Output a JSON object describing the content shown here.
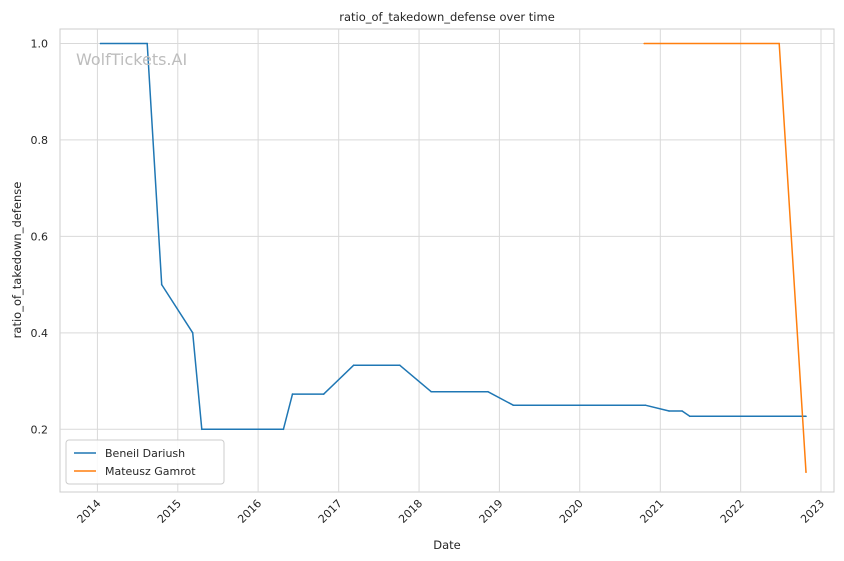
{
  "chart_data": {
    "type": "line",
    "title": "ratio_of_takedown_defense over time",
    "xlabel": "Date",
    "ylabel": "ratio_of_takedown_defense",
    "watermark": "WolfTickets.AI",
    "x_ticks": [
      "2014",
      "2015",
      "2016",
      "2017",
      "2018",
      "2019",
      "2020",
      "2021",
      "2022",
      "2023"
    ],
    "y_ticks": [
      "0.2",
      "0.4",
      "0.6",
      "0.8",
      "1.0"
    ],
    "xlim": [
      "2013-07-15",
      "2023-03-01"
    ],
    "ylim": [
      0.07,
      1.03
    ],
    "grid": true,
    "legend_position": "lower-left",
    "series": [
      {
        "name": "Beneil Dariush",
        "color": "#1f77b4",
        "points": [
          {
            "x": "2014-01-15",
            "y": 1.0
          },
          {
            "x": "2014-08-15",
            "y": 1.0
          },
          {
            "x": "2014-10-20",
            "y": 0.5
          },
          {
            "x": "2015-03-10",
            "y": 0.4
          },
          {
            "x": "2015-04-20",
            "y": 0.2
          },
          {
            "x": "2016-04-25",
            "y": 0.2
          },
          {
            "x": "2016-06-05",
            "y": 0.273
          },
          {
            "x": "2016-10-25",
            "y": 0.273
          },
          {
            "x": "2017-03-10",
            "y": 0.333
          },
          {
            "x": "2017-10-05",
            "y": 0.333
          },
          {
            "x": "2018-02-25",
            "y": 0.278
          },
          {
            "x": "2018-11-10",
            "y": 0.278
          },
          {
            "x": "2019-03-05",
            "y": 0.25
          },
          {
            "x": "2020-10-25",
            "y": 0.25
          },
          {
            "x": "2021-02-10",
            "y": 0.238
          },
          {
            "x": "2021-04-10",
            "y": 0.238
          },
          {
            "x": "2021-05-15",
            "y": 0.227
          },
          {
            "x": "2022-10-25",
            "y": 0.227
          }
        ]
      },
      {
        "name": "Mateusz Gamrot",
        "color": "#ff7f0e",
        "points": [
          {
            "x": "2020-10-20",
            "y": 1.0
          },
          {
            "x": "2022-06-25",
            "y": 1.0
          },
          {
            "x": "2022-10-25",
            "y": 0.111
          }
        ]
      }
    ]
  }
}
